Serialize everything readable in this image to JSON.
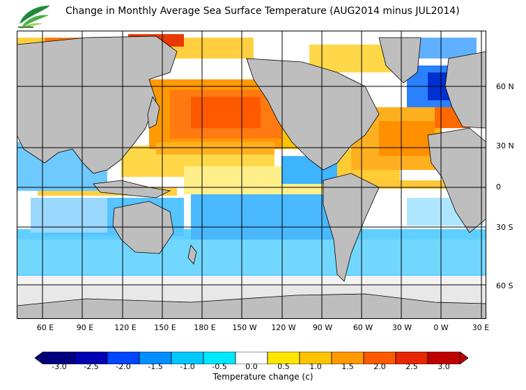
{
  "title": "Change in Monthly Average Sea Surface Temperature (AUG2014 minus JUL2014)",
  "logo_name": "leaf-logo",
  "map": {
    "lat_labels": [
      "60 N",
      "30 N",
      "0",
      "30 S",
      "60 S"
    ],
    "lon_labels": [
      "60 E",
      "90 E",
      "120 E",
      "150 E",
      "180 E",
      "150 W",
      "120 W",
      "90 W",
      "60 W",
      "30 W",
      "0 W",
      "30 E"
    ]
  },
  "colorbar": {
    "ticks": [
      "-3.0",
      "-2.5",
      "-2.0",
      "-1.5",
      "-1.0",
      "-0.5",
      "0.0",
      "0.5",
      "1.0",
      "1.5",
      "2.0",
      "2.5",
      "3.0"
    ],
    "colors": [
      "#000080",
      "#0000b4",
      "#0046ff",
      "#0090ff",
      "#00c8ff",
      "#00e8ff",
      "#ffffff",
      "#ffe600",
      "#ffc400",
      "#ff9a00",
      "#ff5a00",
      "#e82800",
      "#c00000"
    ],
    "label": "Temperature change  (c)"
  },
  "colors": {
    "land": "#bebebe",
    "sea_ice": "#e8e8e8",
    "background": "#ffffff"
  }
}
